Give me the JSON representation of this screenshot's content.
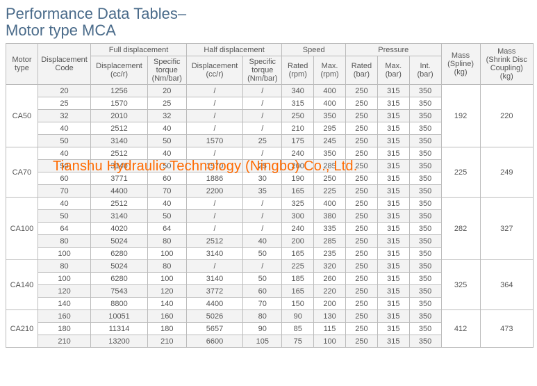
{
  "title_line1": "Performance Data Tables–",
  "title_line2": "Motor type MCA",
  "watermark": "Tianshu Hydraulic Technology (Ningbo) Co., Ltd.",
  "headers": {
    "motor_type": "Motor\ntype",
    "disp_code": "Displacement\nCode",
    "full_disp": "Full displacement",
    "half_disp": "Half displacement",
    "speed": "Speed",
    "pressure": "Pressure",
    "mass_spline": "Mass\n(Spline)\n(kg)",
    "mass_shrink": "Mass\n(Shrink Disc\nCoupling)\n(kg)",
    "disp_ccr": "Displacement\n(cc/r)",
    "torque": "Specific\ntorque\n(Nm/bar)",
    "rated_rpm": "Rated\n(rpm)",
    "max_rpm": "Max.\n(rpm)",
    "rated_bar": "Rated\n(bar)",
    "max_bar": "Max.\n(bar)",
    "int_bar": "Int.\n(bar)"
  },
  "groups": [
    {
      "motor": "CA50",
      "mass_spline": "192",
      "mass_shrink": "220",
      "rows": [
        {
          "code": "20",
          "fd": "1256",
          "ft": "20",
          "hd": "/",
          "ht": "/",
          "rr": "340",
          "mr": "400",
          "rb": "250",
          "mb": "315",
          "ib": "350"
        },
        {
          "code": "25",
          "fd": "1570",
          "ft": "25",
          "hd": "/",
          "ht": "/",
          "rr": "315",
          "mr": "400",
          "rb": "250",
          "mb": "315",
          "ib": "350"
        },
        {
          "code": "32",
          "fd": "2010",
          "ft": "32",
          "hd": "/",
          "ht": "/",
          "rr": "250",
          "mr": "350",
          "rb": "250",
          "mb": "315",
          "ib": "350"
        },
        {
          "code": "40",
          "fd": "2512",
          "ft": "40",
          "hd": "/",
          "ht": "/",
          "rr": "210",
          "mr": "295",
          "rb": "250",
          "mb": "315",
          "ib": "350"
        },
        {
          "code": "50",
          "fd": "3140",
          "ft": "50",
          "hd": "1570",
          "ht": "25",
          "rr": "175",
          "mr": "245",
          "rb": "250",
          "mb": "315",
          "ib": "350"
        }
      ]
    },
    {
      "motor": "CA70",
      "mass_spline": "225",
      "mass_shrink": "249",
      "rows": [
        {
          "code": "40",
          "fd": "2512",
          "ft": "40",
          "hd": "/",
          "ht": "/",
          "rr": "240",
          "mr": "350",
          "rb": "250",
          "mb": "315",
          "ib": "350"
        },
        {
          "code": "50",
          "fd": "3140",
          "ft": "50",
          "hd": "1570",
          "ht": "25",
          "rr": "200",
          "mr": "285",
          "rb": "250",
          "mb": "315",
          "ib": "350"
        },
        {
          "code": "60",
          "fd": "3771",
          "ft": "60",
          "hd": "1886",
          "ht": "30",
          "rr": "190",
          "mr": "250",
          "rb": "250",
          "mb": "315",
          "ib": "350"
        },
        {
          "code": "70",
          "fd": "4400",
          "ft": "70",
          "hd": "2200",
          "ht": "35",
          "rr": "165",
          "mr": "225",
          "rb": "250",
          "mb": "315",
          "ib": "350"
        }
      ]
    },
    {
      "motor": "CA100",
      "mass_spline": "282",
      "mass_shrink": "327",
      "rows": [
        {
          "code": "40",
          "fd": "2512",
          "ft": "40",
          "hd": "/",
          "ht": "/",
          "rr": "325",
          "mr": "400",
          "rb": "250",
          "mb": "315",
          "ib": "350"
        },
        {
          "code": "50",
          "fd": "3140",
          "ft": "50",
          "hd": "/",
          "ht": "/",
          "rr": "300",
          "mr": "380",
          "rb": "250",
          "mb": "315",
          "ib": "350"
        },
        {
          "code": "64",
          "fd": "4020",
          "ft": "64",
          "hd": "/",
          "ht": "/",
          "rr": "240",
          "mr": "335",
          "rb": "250",
          "mb": "315",
          "ib": "350"
        },
        {
          "code": "80",
          "fd": "5024",
          "ft": "80",
          "hd": "2512",
          "ht": "40",
          "rr": "200",
          "mr": "285",
          "rb": "250",
          "mb": "315",
          "ib": "350"
        },
        {
          "code": "100",
          "fd": "6280",
          "ft": "100",
          "hd": "3140",
          "ht": "50",
          "rr": "165",
          "mr": "235",
          "rb": "250",
          "mb": "315",
          "ib": "350"
        }
      ]
    },
    {
      "motor": "CA140",
      "mass_spline": "325",
      "mass_shrink": "364",
      "rows": [
        {
          "code": "80",
          "fd": "5024",
          "ft": "80",
          "hd": "/",
          "ht": "/",
          "rr": "225",
          "mr": "320",
          "rb": "250",
          "mb": "315",
          "ib": "350"
        },
        {
          "code": "100",
          "fd": "6280",
          "ft": "100",
          "hd": "3140",
          "ht": "50",
          "rr": "185",
          "mr": "260",
          "rb": "250",
          "mb": "315",
          "ib": "350"
        },
        {
          "code": "120",
          "fd": "7543",
          "ft": "120",
          "hd": "3772",
          "ht": "60",
          "rr": "165",
          "mr": "220",
          "rb": "250",
          "mb": "315",
          "ib": "350"
        },
        {
          "code": "140",
          "fd": "8800",
          "ft": "140",
          "hd": "4400",
          "ht": "70",
          "rr": "150",
          "mr": "200",
          "rb": "250",
          "mb": "315",
          "ib": "350"
        }
      ]
    },
    {
      "motor": "CA210",
      "mass_spline": "412",
      "mass_shrink": "473",
      "rows": [
        {
          "code": "160",
          "fd": "10051",
          "ft": "160",
          "hd": "5026",
          "ht": "80",
          "rr": "90",
          "mr": "130",
          "rb": "250",
          "mb": "315",
          "ib": "350"
        },
        {
          "code": "180",
          "fd": "11314",
          "ft": "180",
          "hd": "5657",
          "ht": "90",
          "rr": "85",
          "mr": "115",
          "rb": "250",
          "mb": "315",
          "ib": "350"
        },
        {
          "code": "210",
          "fd": "13200",
          "ft": "210",
          "hd": "6600",
          "ht": "105",
          "rr": "75",
          "mr": "100",
          "rb": "250",
          "mb": "315",
          "ib": "350"
        }
      ]
    }
  ],
  "col_widths": [
    "45",
    "75",
    "80",
    "55",
    "80",
    "55",
    "45",
    "45",
    "45",
    "45",
    "45",
    "55",
    "75"
  ],
  "colors": {
    "title": "#4a6b8a",
    "border": "#bbbbbb",
    "alt_bg": "#f3f3f3",
    "text": "#555555",
    "watermark": "#ff6a00"
  }
}
